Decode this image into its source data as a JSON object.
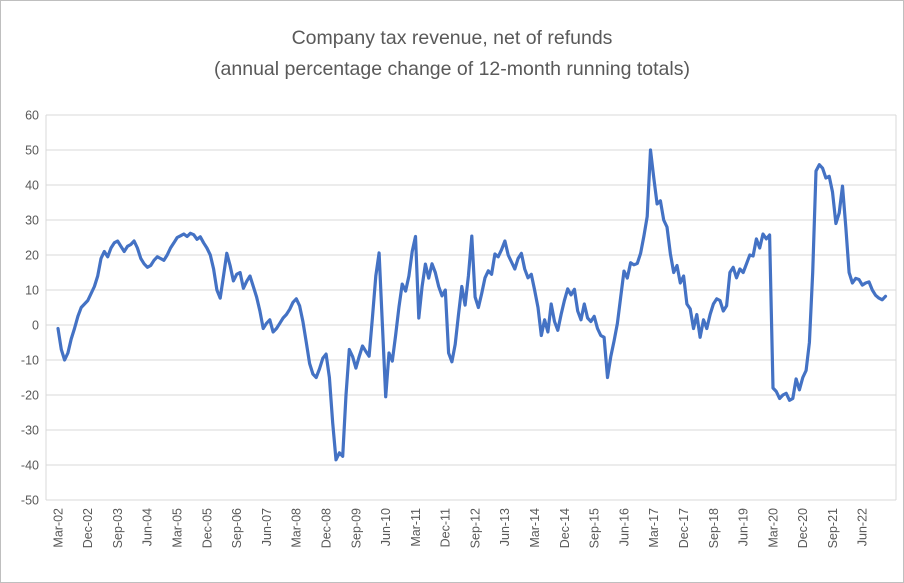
{
  "chart": {
    "title": "Company tax revenue, net of refunds",
    "subtitle": "(annual percentage change of 12-month running totals)"
  },
  "chart_data": {
    "type": "line",
    "title": "Company tax revenue, net of refunds",
    "subtitle": "(annual percentage change of 12-month running totals)",
    "series_name": "Company tax revenue, annual % change of 12-month running totals",
    "line_color": "#4472C4",
    "grid_color": "#D9D9D9",
    "text_color": "#595959",
    "background_color": "#FFFFFF",
    "grid": "horizontal-only",
    "legend": "none",
    "ylim": [
      -50,
      60
    ],
    "y_ticks": [
      60,
      50,
      40,
      30,
      20,
      10,
      0,
      -10,
      -20,
      -30,
      -40,
      -50
    ],
    "x_start": "Mar-02",
    "x_end": "Jan-23",
    "x_frequency": "monthly",
    "x_tick_interval_months": 9,
    "x_tick_labels": [
      "Mar-02",
      "Dec-02",
      "Sep-03",
      "Jun-04",
      "Mar-05",
      "Dec-05",
      "Sep-06",
      "Jun-07",
      "Mar-08",
      "Dec-08",
      "Sep-09",
      "Jun-10",
      "Mar-11",
      "Dec-11",
      "Sep-12",
      "Jun-13",
      "Mar-14",
      "Dec-14",
      "Sep-15",
      "Jun-16",
      "Mar-17",
      "Dec-17",
      "Sep-18",
      "Jun-19",
      "Mar-20",
      "Dec-20",
      "Sep-21",
      "Jun-22"
    ],
    "values": [
      -1,
      -7,
      -10,
      -8,
      -4,
      -1,
      2.5,
      5,
      6,
      7,
      9,
      11,
      14,
      19,
      21,
      19.5,
      22,
      23.5,
      24,
      22.5,
      21,
      22.5,
      23,
      24,
      22,
      19,
      17.5,
      16.5,
      17,
      18.5,
      19.5,
      19,
      18.5,
      20,
      22,
      23.5,
      25,
      25.5,
      26,
      25.3,
      26.2,
      25.8,
      24.5,
      25.2,
      23.5,
      22,
      20,
      16,
      10,
      7.7,
      14,
      20.5,
      17,
      12.6,
      14.5,
      15,
      10.5,
      12.5,
      14,
      11,
      8,
      4,
      -1,
      0.5,
      1.5,
      -2,
      -1,
      0.5,
      2,
      3,
      4.5,
      6.5,
      7.5,
      5.5,
      1,
      -5,
      -11,
      -14,
      -15,
      -12.5,
      -9.5,
      -8.3,
      -15,
      -28,
      -38.5,
      -36.5,
      -37.5,
      -20,
      -7,
      -9,
      -12.3,
      -9,
      -6,
      -7.5,
      -8.9,
      2,
      14,
      20.6,
      0,
      -20.5,
      -8,
      -10.3,
      -3,
      5,
      11.7,
      9.7,
      14,
      21,
      25.3,
      2,
      11,
      17.4,
      13.4,
      17.5,
      15,
      11,
      8.3,
      10,
      -8,
      -10.5,
      -5.5,
      3,
      11,
      5.7,
      14,
      25.4,
      8,
      5,
      9,
      13.5,
      15.5,
      14.5,
      20.3,
      19.5,
      21.5,
      24,
      20,
      18,
      16,
      19,
      20.5,
      16,
      13.5,
      14.5,
      10,
      5,
      -3,
      1.5,
      -2,
      6,
      1,
      -1.5,
      3,
      7,
      10.3,
      8.6,
      10.2,
      4,
      1.5,
      6,
      2,
      1,
      2.5,
      -1,
      -3,
      -3.5,
      -15,
      -9,
      -4.5,
      0.5,
      8,
      15.4,
      13.4,
      17.8,
      17.2,
      17.6,
      20.5,
      25.4,
      31,
      50,
      42,
      34.6,
      35.5,
      30,
      28,
      20.3,
      15,
      17,
      12,
      14,
      6,
      4.6,
      -1,
      3,
      -3.5,
      1.5,
      -1,
      3,
      6,
      7.5,
      7,
      4,
      5.5,
      15,
      16.5,
      13.5,
      16,
      15,
      17.5,
      20,
      19.7,
      24.6,
      22,
      26,
      24.6,
      25.7,
      -18,
      -19,
      -21,
      -20,
      -19.5,
      -21.5,
      -21,
      -15.4,
      -18.5,
      -15,
      -13,
      -5,
      15,
      44,
      45.8,
      44.8,
      42,
      42.5,
      38,
      29,
      32,
      39.7,
      28,
      15,
      12,
      13.3,
      13,
      11.4,
      12,
      12.3,
      10,
      8.5,
      7.7,
      7.2,
      8.2
    ]
  }
}
